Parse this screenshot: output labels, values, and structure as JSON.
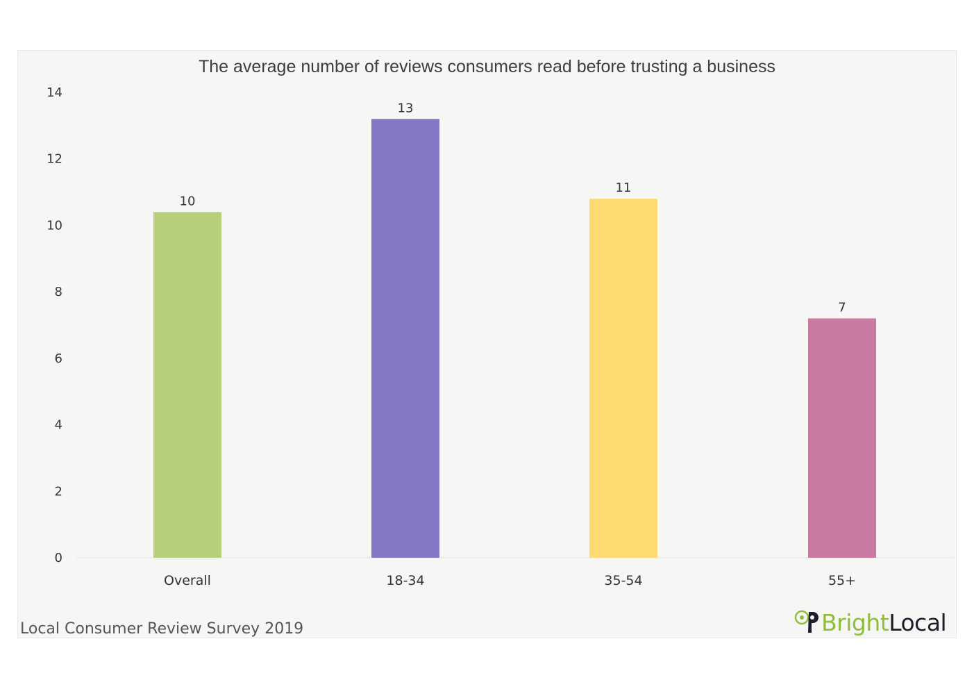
{
  "chart_data": {
    "type": "bar",
    "title": "The average number of reviews consumers read before trusting a business",
    "categories": [
      "Overall",
      "18-34",
      "35-54",
      "55+"
    ],
    "values": [
      10.4,
      13.2,
      10.8,
      7.2
    ],
    "data_labels": [
      "10",
      "13",
      "11",
      "7"
    ],
    "colors": [
      "#b5cf7a",
      "#8376c4",
      "#fddb70",
      "#c979a2"
    ],
    "ylim": [
      0,
      14
    ],
    "yticks": [
      0,
      2,
      4,
      6,
      8,
      10,
      12,
      14
    ],
    "grid": false,
    "xlabel": "",
    "ylabel": ""
  },
  "footer": {
    "source": "Local Consumer Review Survey 2019",
    "brand_part1": "Bright",
    "brand_part2": "Local",
    "logo_icon": "map-pin-icon"
  }
}
